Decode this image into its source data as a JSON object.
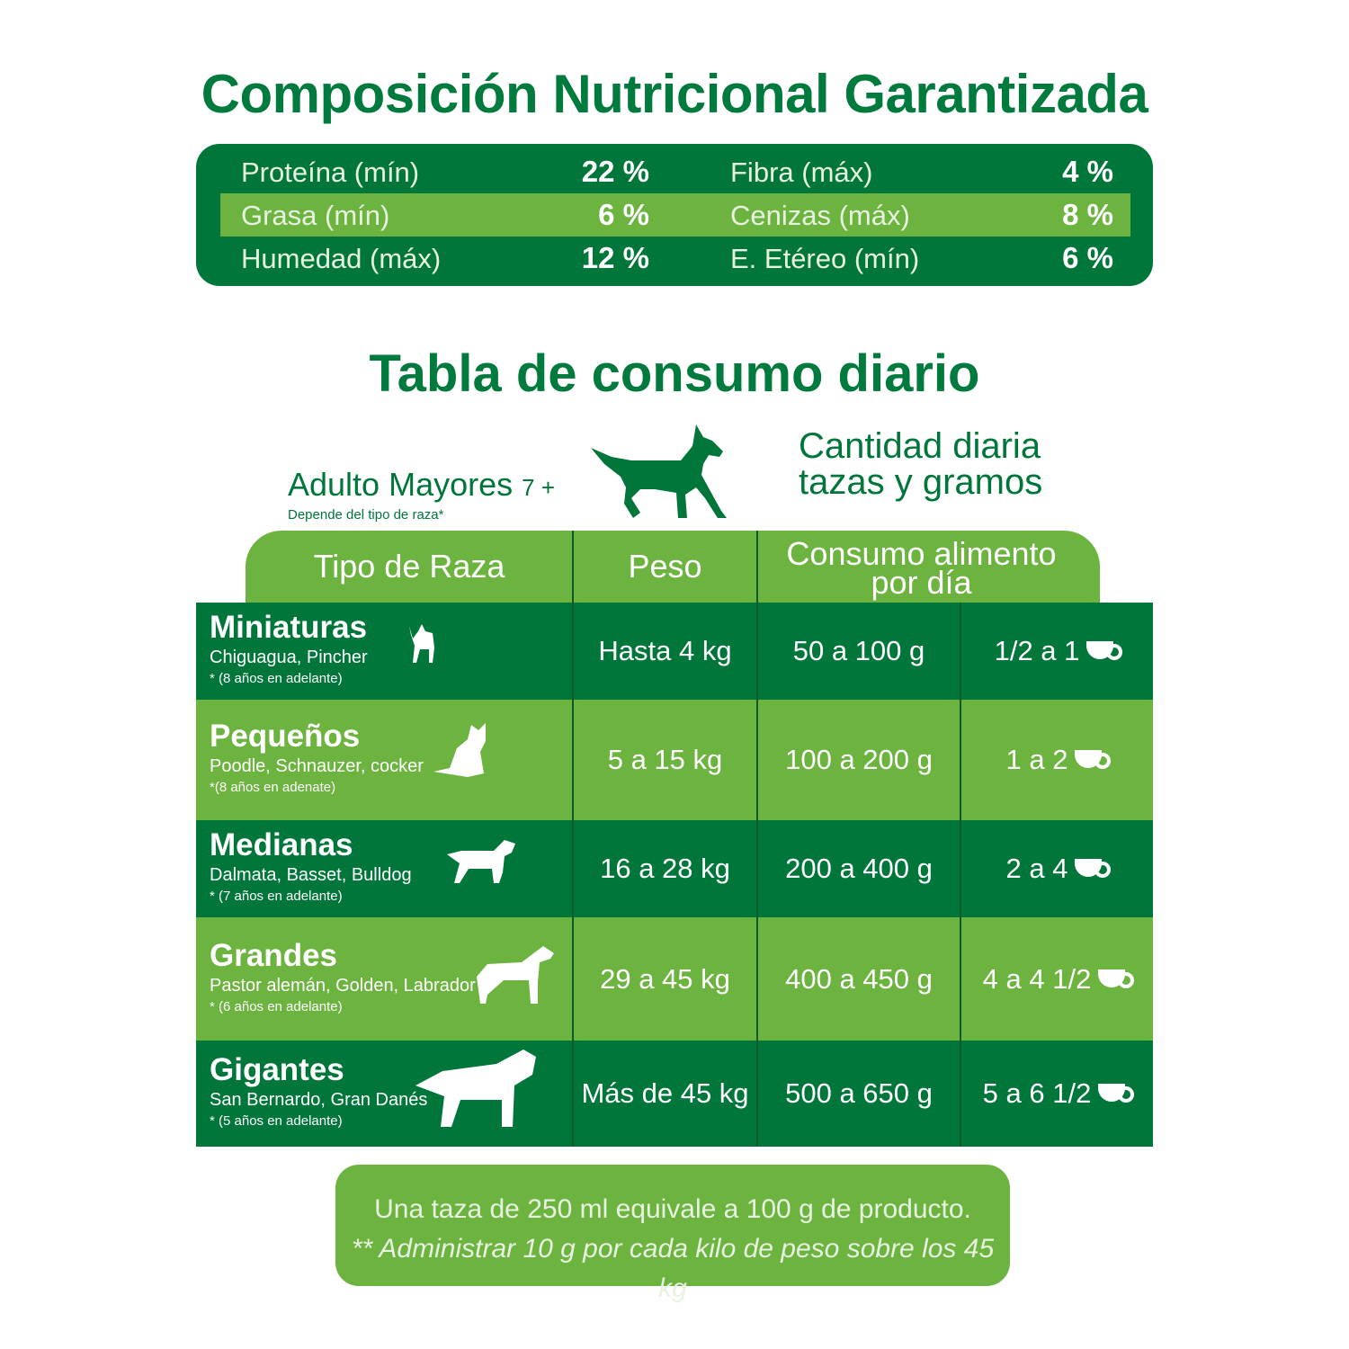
{
  "title": "Composición Nutricional Garantizada",
  "nutrition": [
    {
      "label": "Proteína (mín)",
      "value": "22 %"
    },
    {
      "label": "Fibra (máx)",
      "value": "4 %"
    },
    {
      "label": "Grasa (mín)",
      "value": "6 %"
    },
    {
      "label": "Cenizas (máx)",
      "value": "8 %"
    },
    {
      "label": "Humedad (máx)",
      "value": "12 %"
    },
    {
      "label": "E. Etéreo (mín)",
      "value": "6 %"
    }
  ],
  "table_title": "Tabla de consumo diario",
  "segment": {
    "label": "Adulto Mayores",
    "suffix": "7 +",
    "note": "Depende del tipo de raza*"
  },
  "quantity_label": {
    "line1": "Cantidad diaria",
    "line2": "tazas y gramos"
  },
  "headers": {
    "breed": "Tipo de Raza",
    "weight": "Peso",
    "consumption_line1": "Consumo alimento",
    "consumption_line2": "por día"
  },
  "rows": [
    {
      "name": "Miniaturas",
      "breeds": "Chiguagua, Pincher",
      "age": "* (8 años en adelante)",
      "weight": "Hasta 4 kg",
      "grams": "50 a 100 g",
      "cups": "1/2 a 1"
    },
    {
      "name": "Pequeños",
      "breeds": "Poodle, Schnauzer, cocker",
      "age": "*(8 años en adenate)",
      "weight": "5 a 15 kg",
      "grams": "100 a 200 g",
      "cups": "1 a 2"
    },
    {
      "name": "Medianas",
      "breeds": "Dalmata, Basset, Bulldog",
      "age": "* (7 años en adelante)",
      "weight": "16 a 28 kg",
      "grams": "200 a 400 g",
      "cups": "2 a 4"
    },
    {
      "name": "Grandes",
      "breeds": "Pastor alemán, Golden, Labrador",
      "age": "* (6 años en adelante)",
      "weight": "29 a 45 kg",
      "grams": "400 a 450 g",
      "cups": "4 a 4 1/2"
    },
    {
      "name": "Gigantes",
      "breeds": "San Bernardo, Gran Danés",
      "age": "* (5 años en adelante)",
      "weight": "Más de 45 kg",
      "grams": "500 a 650 g",
      "cups": "5 a 6 1/2"
    }
  ],
  "footer": {
    "line1": "Una taza de 250 ml equivale a 100 g de producto.",
    "line2": "** Administrar 10 g por cada kilo de peso sobre los 45 kg"
  },
  "colors": {
    "dark_green": "#00763a",
    "light_green": "#6cb33f"
  }
}
